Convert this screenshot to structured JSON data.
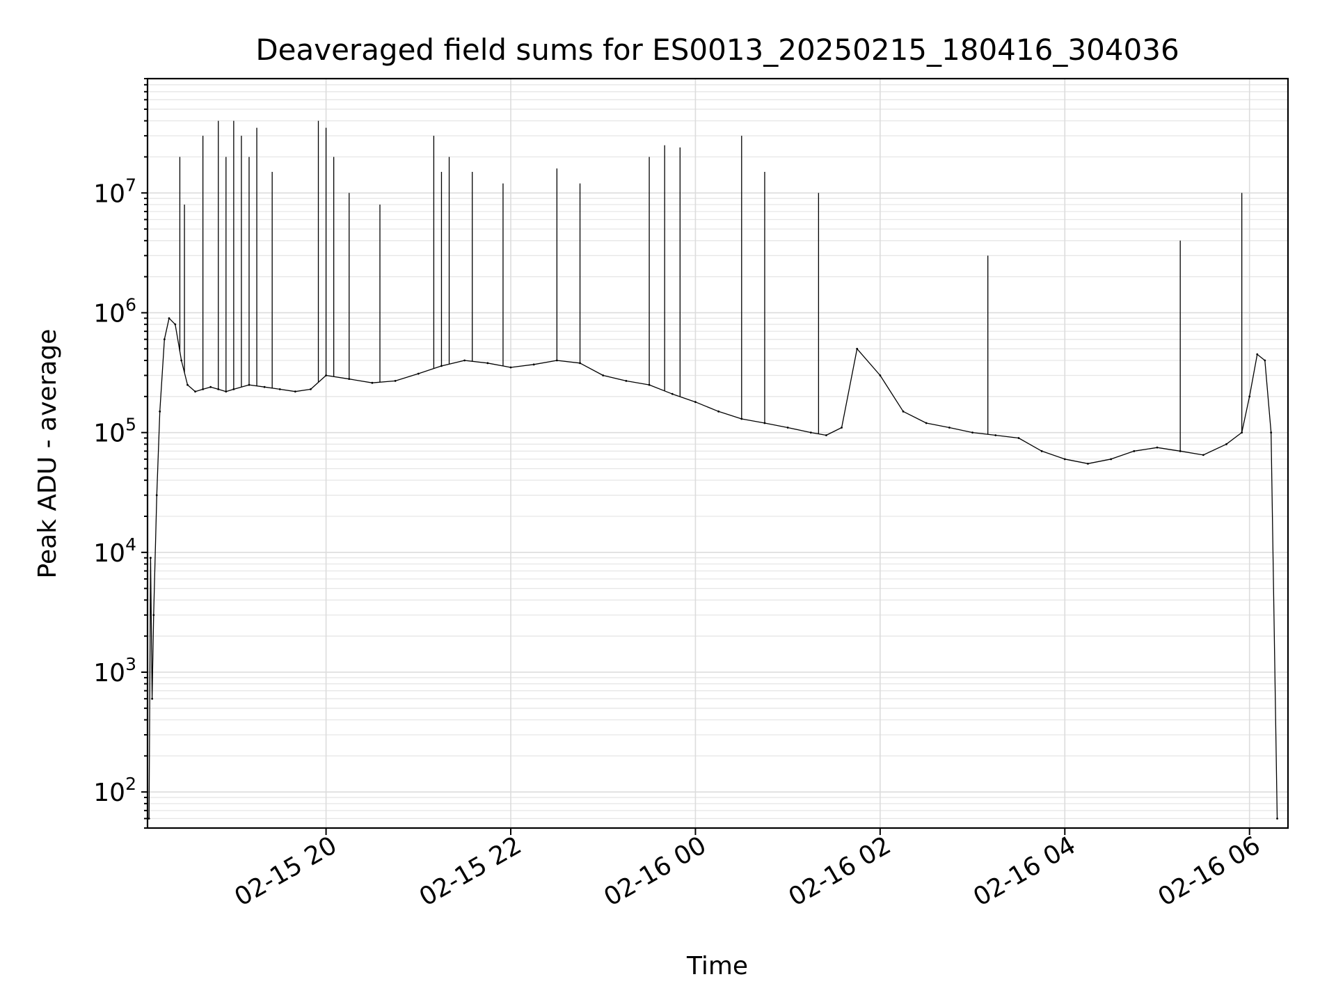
{
  "chart_data": {
    "type": "line",
    "title": "Deaveraged field sums for ES0013_20250215_180416_304036",
    "xlabel": "Time",
    "ylabel": "Peak ADU - average",
    "yscale": "log",
    "ylim": [
      50,
      90000000
    ],
    "xlim": [
      "2025-02-15 18:04",
      "2025-02-16 06:25"
    ],
    "x_tick_labels": [
      "02-15 20",
      "02-15 22",
      "02-16 00",
      "02-16 02",
      "02-16 04",
      "02-16 06"
    ],
    "x_tick_times": [
      "2025-02-15 20:00",
      "2025-02-15 22:00",
      "2025-02-16 00:00",
      "2025-02-16 02:00",
      "2025-02-16 04:00",
      "2025-02-16 06:00"
    ],
    "y_ticks": [
      {
        "base": "10",
        "exp": "2",
        "value": 100
      },
      {
        "base": "10",
        "exp": "3",
        "value": 1000
      },
      {
        "base": "10",
        "exp": "4",
        "value": 10000
      },
      {
        "base": "10",
        "exp": "5",
        "value": 100000
      },
      {
        "base": "10",
        "exp": "6",
        "value": 1000000
      },
      {
        "base": "10",
        "exp": "7",
        "value": 10000000
      }
    ],
    "grid": true,
    "line_color": "#000000",
    "series": [
      {
        "x": [
          "2025-02-15 18:05",
          "2025-02-15 18:06",
          "2025-02-15 18:07",
          "2025-02-15 18:08",
          "2025-02-15 18:10",
          "2025-02-15 18:12",
          "2025-02-15 18:15",
          "2025-02-15 18:18",
          "2025-02-15 18:22",
          "2025-02-15 18:26",
          "2025-02-15 18:30",
          "2025-02-15 18:35",
          "2025-02-15 18:40",
          "2025-02-15 18:45",
          "2025-02-15 18:50",
          "2025-02-15 18:55",
          "2025-02-15 19:00",
          "2025-02-15 19:10",
          "2025-02-15 19:20",
          "2025-02-15 19:30",
          "2025-02-15 19:40",
          "2025-02-15 19:50",
          "2025-02-15 20:00",
          "2025-02-15 20:15",
          "2025-02-15 20:30",
          "2025-02-15 20:45",
          "2025-02-15 21:00",
          "2025-02-15 21:15",
          "2025-02-15 21:30",
          "2025-02-15 21:45",
          "2025-02-15 22:00",
          "2025-02-15 22:15",
          "2025-02-15 22:30",
          "2025-02-15 22:45",
          "2025-02-15 23:00",
          "2025-02-15 23:15",
          "2025-02-15 23:30",
          "2025-02-15 23:45",
          "2025-02-16 00:00",
          "2025-02-16 00:15",
          "2025-02-16 00:30",
          "2025-02-16 00:45",
          "2025-02-16 01:00",
          "2025-02-16 01:15",
          "2025-02-16 01:25",
          "2025-02-16 01:35",
          "2025-02-16 01:45",
          "2025-02-16 02:00",
          "2025-02-16 02:15",
          "2025-02-16 02:30",
          "2025-02-16 02:45",
          "2025-02-16 03:00",
          "2025-02-16 03:15",
          "2025-02-16 03:30",
          "2025-02-16 03:45",
          "2025-02-16 04:00",
          "2025-02-16 04:15",
          "2025-02-16 04:30",
          "2025-02-16 04:45",
          "2025-02-16 05:00",
          "2025-02-16 05:15",
          "2025-02-16 05:30",
          "2025-02-16 05:45",
          "2025-02-16 05:55",
          "2025-02-16 06:00",
          "2025-02-16 06:05",
          "2025-02-16 06:10",
          "2025-02-16 06:14",
          "2025-02-16 06:18"
        ],
        "y": [
          60,
          9000,
          600,
          3000,
          30000,
          150000,
          600000,
          900000,
          800000,
          400000,
          250000,
          220000,
          230000,
          240000,
          230000,
          220000,
          230000,
          250000,
          240000,
          230000,
          220000,
          230000,
          300000,
          280000,
          260000,
          270000,
          310000,
          360000,
          400000,
          380000,
          350000,
          370000,
          400000,
          380000,
          300000,
          270000,
          250000,
          210000,
          180000,
          150000,
          130000,
          120000,
          110000,
          100000,
          95000,
          110000,
          500000,
          300000,
          150000,
          120000,
          110000,
          100000,
          95000,
          90000,
          70000,
          60000,
          55000,
          60000,
          70000,
          75000,
          70000,
          65000,
          80000,
          100000,
          200000,
          450000,
          400000,
          100000,
          60
        ]
      }
    ],
    "spikes": {
      "x": [
        "2025-02-15 18:25",
        "2025-02-15 18:28",
        "2025-02-15 18:40",
        "2025-02-15 18:50",
        "2025-02-15 18:55",
        "2025-02-15 19:00",
        "2025-02-15 19:05",
        "2025-02-15 19:10",
        "2025-02-15 19:15",
        "2025-02-15 19:25",
        "2025-02-15 19:55",
        "2025-02-15 20:00",
        "2025-02-15 20:05",
        "2025-02-15 20:15",
        "2025-02-15 20:35",
        "2025-02-15 21:10",
        "2025-02-15 21:15",
        "2025-02-15 21:20",
        "2025-02-15 21:35",
        "2025-02-15 21:55",
        "2025-02-15 22:30",
        "2025-02-15 22:45",
        "2025-02-15 23:30",
        "2025-02-15 23:40",
        "2025-02-15 23:50",
        "2025-02-16 00:30",
        "2025-02-16 00:45",
        "2025-02-16 01:20",
        "2025-02-16 03:10",
        "2025-02-16 05:15",
        "2025-02-16 05:55"
      ],
      "y": [
        20000000,
        8000000,
        30000000,
        40000000,
        20000000,
        40000000,
        30000000,
        20000000,
        35000000,
        15000000,
        40000000,
        35000000,
        20000000,
        10000000,
        8000000,
        30000000,
        15000000,
        20000000,
        15000000,
        12000000,
        16000000,
        12000000,
        20000000,
        25000000,
        24000000,
        30000000,
        15000000,
        10000000,
        3000000,
        4000000,
        10000000
      ]
    }
  }
}
